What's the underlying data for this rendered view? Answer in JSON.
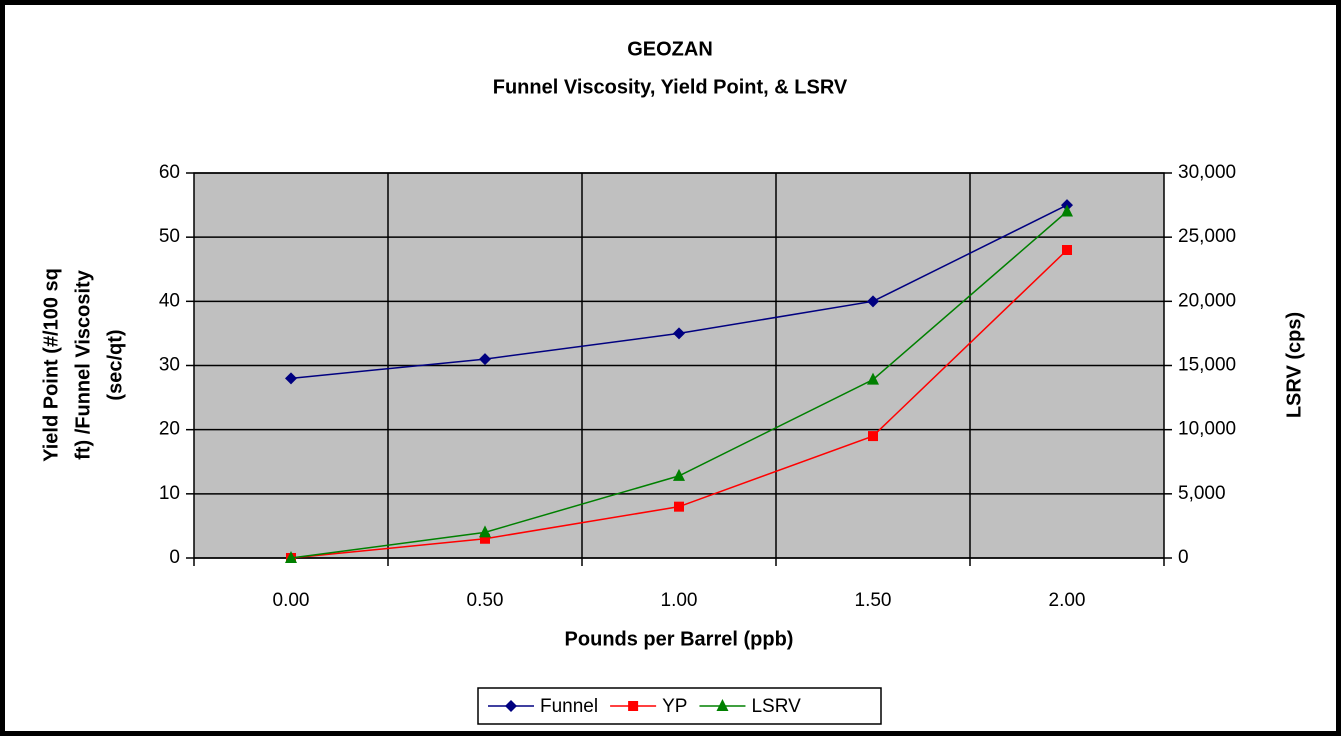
{
  "chart_data": {
    "type": "line",
    "title": [
      "GEOZAN",
      "Funnel Viscosity, Yield Point, &  LSRV"
    ],
    "x_label": "Pounds per Barrel (ppb)",
    "y_label": [
      "Yield Point (#/100 sq",
      "ft) /Funnel Viscosity",
      "(sec/qt)"
    ],
    "y2_label": "LSRV (cps)",
    "categories": [
      "0.00",
      "0.50",
      "1.00",
      "1.50",
      "2.00"
    ],
    "series": [
      {
        "name": "Funnel",
        "color": "#000080",
        "marker": "diamond",
        "values": [
          28,
          31,
          35,
          40,
          55
        ]
      },
      {
        "name": "YP",
        "color": "#ff0000",
        "marker": "square",
        "values": [
          0,
          3,
          8,
          19,
          48
        ]
      },
      {
        "name": "LSRV",
        "color": "#008000",
        "marker": "triangle",
        "axis": "y2",
        "values": [
          0,
          2000,
          6400,
          13900,
          27000
        ]
      }
    ],
    "ylim": [
      0,
      60
    ],
    "yticks": [
      0,
      10,
      20,
      30,
      40,
      50,
      60
    ],
    "y2lim": [
      0,
      30000
    ],
    "y2ticks": [
      0,
      {
        "value": 5000,
        "label": "5,000"
      },
      {
        "value": 10000,
        "label": "10,000"
      },
      {
        "value": 15000,
        "label": "15,000"
      },
      {
        "value": 20000,
        "label": "20,000"
      },
      {
        "value": 25000,
        "label": "25,000"
      },
      {
        "value": 30000,
        "label": "30,000"
      }
    ],
    "grid": true,
    "plot_background": "#c0c0c0",
    "legend": "bottom"
  }
}
